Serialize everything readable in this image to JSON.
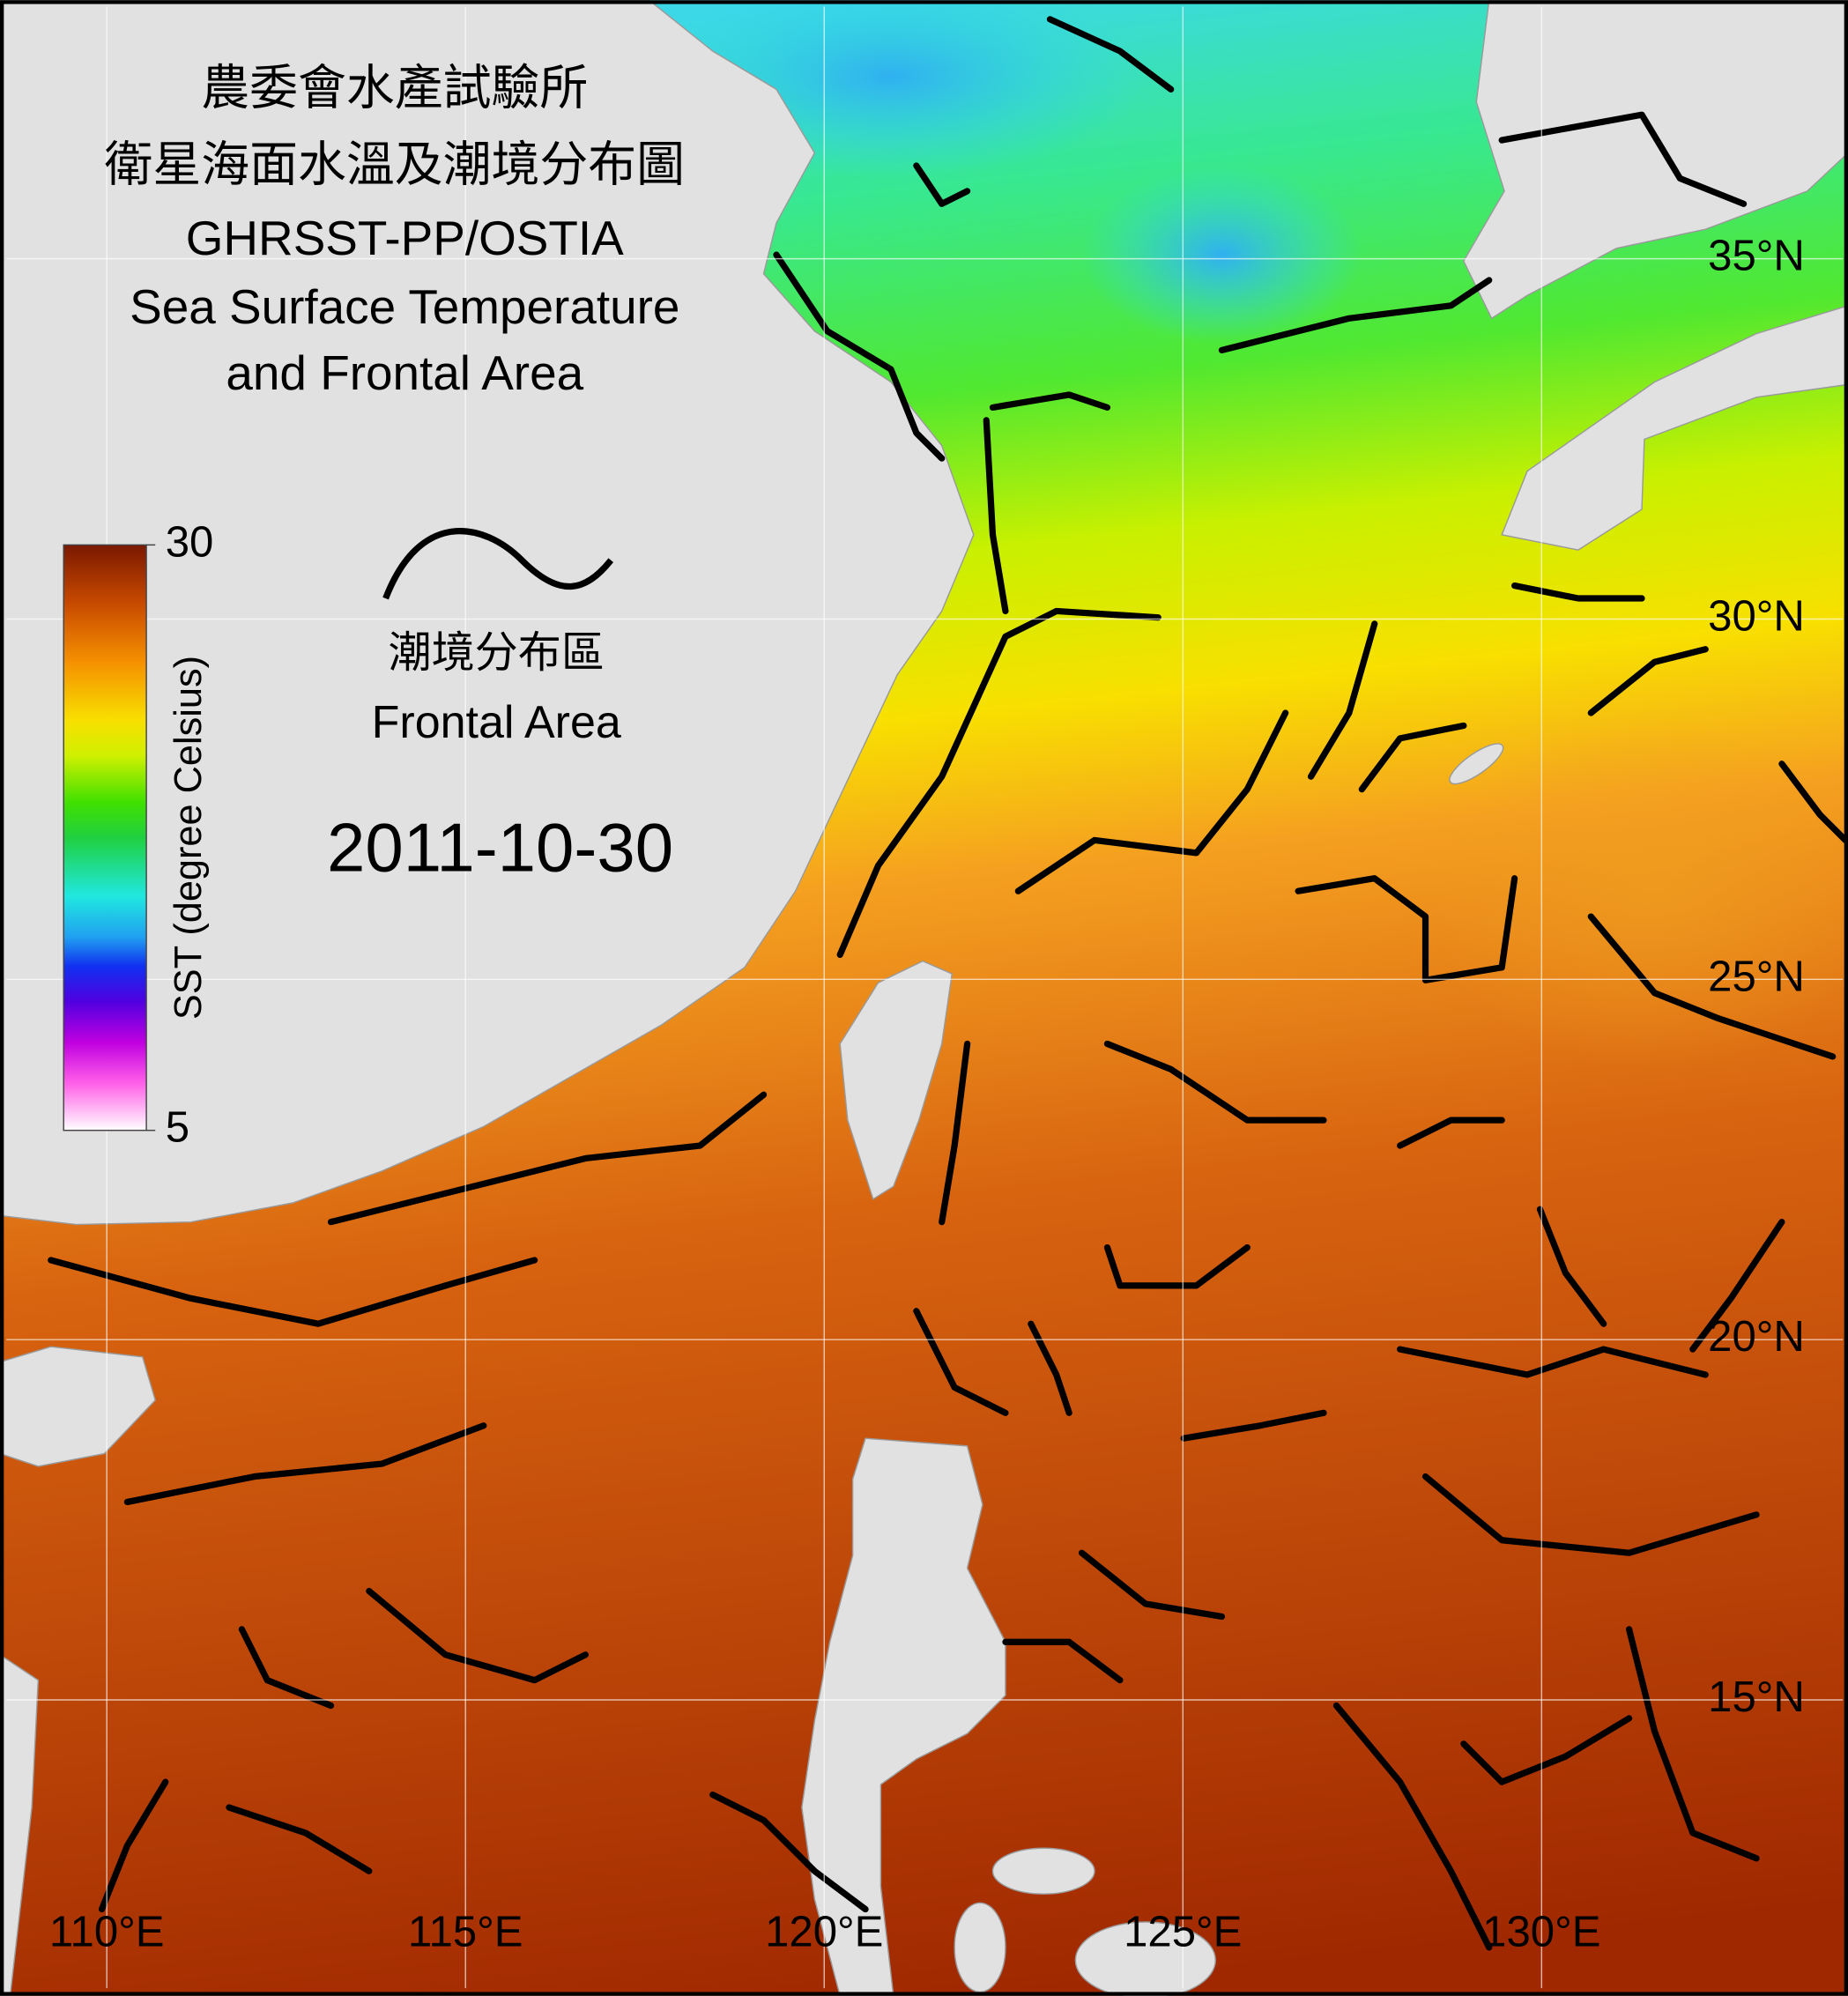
{
  "title_lines": [
    "農委會水產試驗所",
    "衛星海面水溫及潮境分布圖",
    "GHRSST-PP/OSTIA",
    "Sea Surface Temperature",
    "and Frontal Area"
  ],
  "legend": {
    "label_zh": "潮境分布區",
    "label_en": "Frontal Area"
  },
  "date": "2011-10-30",
  "colorbar": {
    "label": "SST (degree Celsius)",
    "lim": [
      5,
      30
    ],
    "ticks": [
      30,
      5
    ]
  },
  "map": {
    "xlim": [
      108.6,
      134.2
    ],
    "ylim": [
      11,
      38.5
    ],
    "xticks": [
      {
        "value": 110,
        "label": "110°E"
      },
      {
        "value": 115,
        "label": "115°E"
      },
      {
        "value": 120,
        "label": "120°E"
      },
      {
        "value": 125,
        "label": "125°E"
      },
      {
        "value": 130,
        "label": "130°E"
      }
    ],
    "yticks": [
      {
        "value": 35,
        "label": "35°N"
      },
      {
        "value": 30,
        "label": "30°N"
      },
      {
        "value": 25,
        "label": "25°N"
      },
      {
        "value": 20,
        "label": "20°N"
      },
      {
        "value": 15,
        "label": "15°N"
      }
    ]
  }
}
